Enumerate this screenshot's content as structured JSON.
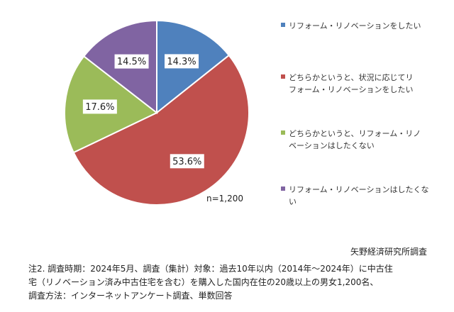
{
  "chart_data": {
    "type": "pie",
    "categories": [
      "リフォーム・リノベーションをしたい",
      "どちらかというと、状況に応じてリフォーム・リノベーションをしたい",
      "どちらかというと、リフォーム・リノベーションはしたくない",
      "リフォーム・リノベーションはしたくない"
    ],
    "values": [
      14.3,
      53.6,
      17.6,
      14.5
    ],
    "data_labels": [
      "14.3%",
      "53.6%",
      "17.6%",
      "14.5%"
    ],
    "colors": [
      "#4f81bd",
      "#c0504d",
      "#9bbb59",
      "#8064a2"
    ],
    "legend": {
      "position": "right",
      "entries": [
        [
          "リフォーム・リノベーションをしたい"
        ],
        [
          "どちらかというと、状況に応じてリ",
          "フォーム・リノベーションをしたい"
        ],
        [
          "どちらかというと、リフォーム・リノ",
          "ベーションはしたくない"
        ],
        [
          "リフォーム・リノベーションはしたくな",
          "い"
        ]
      ]
    },
    "n_label": "n=1,200",
    "start": "12 o'clock, clockwise"
  },
  "source": "矢野経済研究所調査",
  "note_lines": [
    "注2. 調査時期：2024年5月、調査（集計）対象：過去10年以内（2014年～2024年）に中古住",
    "宅（リノベーション済み中古住宅を含む）を購入した国内在住の20歳以上の男女1,200名、",
    "調査方法：インターネットアンケート調査、単数回答"
  ]
}
